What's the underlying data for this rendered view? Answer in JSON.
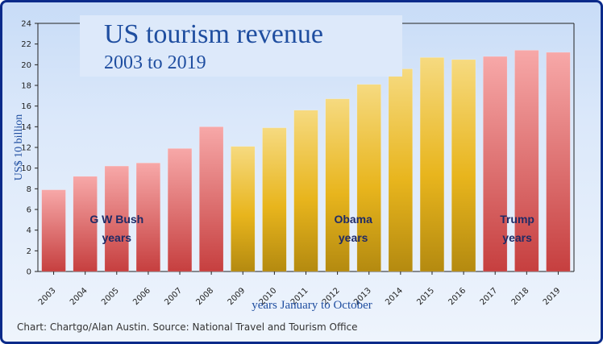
{
  "source": "Chart: Chartgo/Alan Austin. Source: National Travel and Tourism Office",
  "chart_data": {
    "type": "bar",
    "title": "US tourism revenue",
    "subtitle": "2003 to 2019",
    "xlabel": "years January to October",
    "ylabel": "US$ 10 billion",
    "ylim": [
      0,
      24
    ],
    "yticks": [
      0,
      2,
      4,
      6,
      8,
      10,
      12,
      14,
      16,
      18,
      20,
      22,
      24
    ],
    "grid": false,
    "categories": [
      "2003",
      "2004",
      "2005",
      "2006",
      "2007",
      "2008",
      "2009",
      "2010",
      "2011",
      "2012",
      "2013",
      "2014",
      "2015",
      "2016",
      "2017",
      "2018",
      "2019"
    ],
    "values": [
      7.9,
      9.2,
      10.2,
      10.5,
      11.9,
      14.0,
      12.1,
      13.9,
      15.6,
      16.7,
      18.1,
      19.6,
      20.7,
      20.5,
      20.8,
      21.4,
      21.2
    ],
    "colors": {
      "bush_trump_top": "#f6a5a5",
      "bush_trump_bottom": "#c8403f",
      "obama_top": "#f5d978",
      "obama_bottom": "#b88a0c"
    },
    "eras": [
      {
        "line1": "G W Bush",
        "line2": "years",
        "from": "2003",
        "to": "2008",
        "color": "red"
      },
      {
        "line1": "Obama",
        "line2": "years",
        "from": "2009",
        "to": "2016",
        "color": "gold"
      },
      {
        "line1": "Trump",
        "line2": "years",
        "from": "2017",
        "to": "2019",
        "color": "red"
      }
    ]
  }
}
